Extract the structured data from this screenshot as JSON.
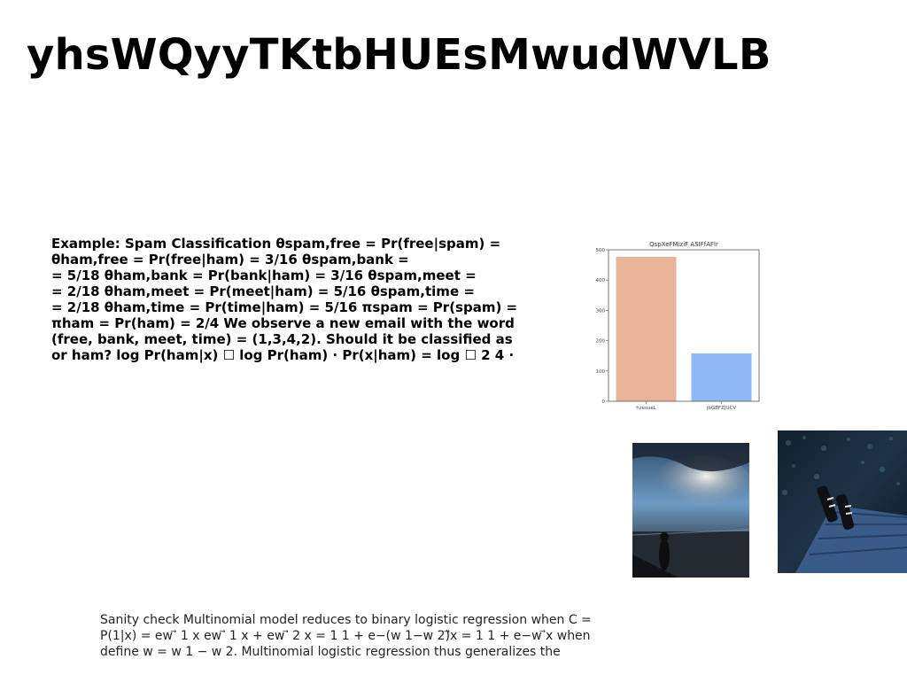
{
  "title": "yhsWQyyTKtbHUEsMwudWVLB",
  "example_lines": [
    "Example: Spam Classification θspam,free = Pr(free|spam) =",
    "θham,free = Pr(free|ham) = 3/16 θspam,bank =",
    "= 5/18 θham,bank = Pr(bank|ham) = 3/16 θspam,meet =",
    "= 2/18 θham,meet = Pr(meet|ham) = 5/16 θspam,time =",
    "= 2/18 θham,time = Pr(time|ham) = 5/16 πspam = Pr(spam) =",
    "πham = Pr(ham) = 2/4 We observe a new email with the word",
    "(free, bank, meet, time) = (1,3,4,2). Should it be classified as",
    "or ham? log Pr(ham|x) ☐ log Pr(ham) · Pr(x|ham) = log ☐ 2 4 ·"
  ],
  "bottom_lines": [
    "Sanity check Multinomial model reduces to binary logistic regression when C =",
    "P(1|x) = ew ⃗ 1 x ew ⃗ 1 x + ew ⃗ 2 x = 1 1 + e−(w 1−w 2)⃗x = 1 1 + e−w ⃗x when",
    "define w = w 1 − w 2. Multinomial logistic regression thus generalizes the"
  ],
  "chart_data": {
    "type": "bar",
    "title": "QspXeFMiziF ASIFfAFlr",
    "categories": [
      "hzesueL",
      "jbGBFZJUCV"
    ],
    "values": [
      477,
      158
    ],
    "colors": [
      "#e8b49a",
      "#90b8f5"
    ],
    "ylim": [
      0,
      500
    ],
    "yticks": [
      0,
      100,
      200,
      300,
      400,
      500
    ],
    "xlabel": "",
    "ylabel": ""
  },
  "images": {
    "photo_sky": "sky-over-water-photo",
    "photo_night": "night-stairs-photo"
  }
}
